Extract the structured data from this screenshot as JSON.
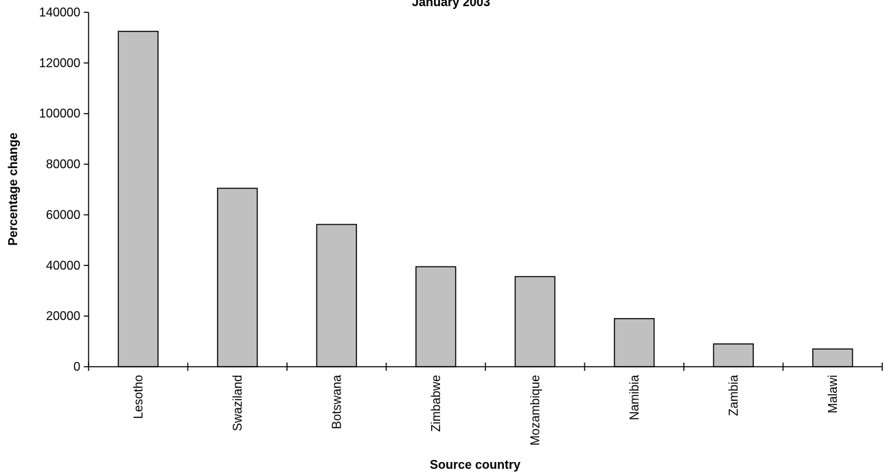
{
  "chart_data": {
    "type": "bar",
    "title": "January 2003",
    "xlabel": "Source country",
    "ylabel": "Percentage change",
    "categories": [
      "Lesotho",
      "Swaziland",
      "Botswana",
      "Zimbabwe",
      "Mozambique",
      "Namibia",
      "Zambia",
      "Malawi"
    ],
    "values": [
      132500,
      70500,
      56200,
      39500,
      35600,
      19000,
      9000,
      7000
    ],
    "ylim": [
      0,
      140000
    ],
    "yticks": [
      "0",
      "20000",
      "40000",
      "60000",
      "80000",
      "100000",
      "120000",
      "140000"
    ],
    "grid": false,
    "legend": "none",
    "bar_color": "#c0c0c0",
    "bar_edge_color": "#000000"
  }
}
